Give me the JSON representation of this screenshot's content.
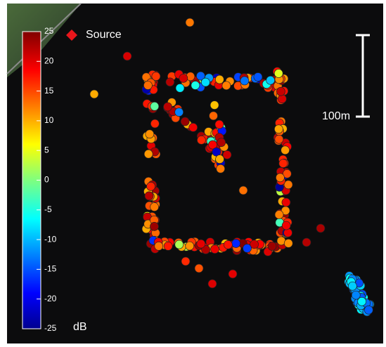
{
  "colorbar": {
    "ticks": [
      25,
      20,
      15,
      10,
      5,
      0,
      -5,
      -10,
      -15,
      -20,
      -25
    ],
    "unit": "dB"
  },
  "legend": {
    "label": "Source"
  },
  "scale_bar": {
    "label": "100m"
  }
}
